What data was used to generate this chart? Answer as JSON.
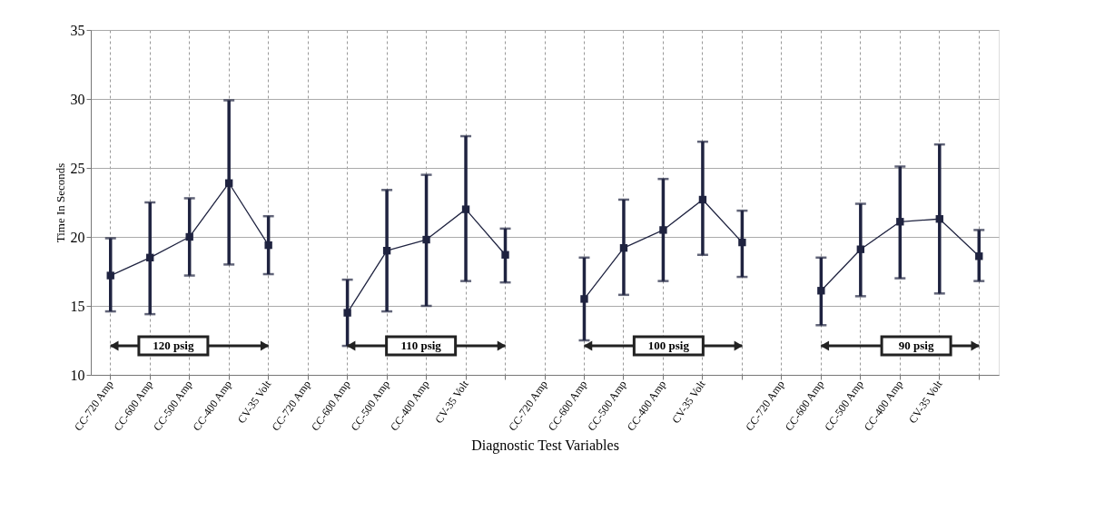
{
  "chart_data": {
    "type": "line",
    "xlabel": "Diagnostic Test Variables",
    "ylabel": "Time In Seconds",
    "categories": [
      "CC-720 Amp",
      "CC-600 Amp",
      "CC-500 Amp",
      "CC-400 Amp",
      "CV-35 Volt",
      "CC-720 Amp",
      "CC-600 Amp",
      "CC-500 Amp",
      "CC-400 Amp",
      "CV-35 Volt",
      null,
      "CC-720 Amp",
      "CC-600 Amp",
      "CC-500 Amp",
      "CC-400 Amp",
      "CV-35 Volt",
      null,
      "CC-720 Amp",
      "CC-600 Amp",
      "CC-500 Amp",
      "CC-400 Amp",
      "CV-35 Volt",
      null
    ],
    "series": [
      {
        "color": "#1f2340",
        "values": [
          17.2,
          18.5,
          20.0,
          23.9,
          19.4,
          null,
          14.5,
          19.0,
          19.8,
          22.0,
          18.7,
          null,
          15.5,
          19.2,
          20.5,
          22.7,
          19.6,
          null,
          16.1,
          19.1,
          21.1,
          21.3,
          18.6
        ],
        "errors": [
          [
            14.6,
            19.9
          ],
          [
            14.4,
            22.5
          ],
          [
            17.2,
            22.8
          ],
          [
            18.0,
            29.9
          ],
          [
            17.3,
            21.5
          ],
          null,
          [
            12.1,
            16.9
          ],
          [
            14.6,
            23.4
          ],
          [
            15.0,
            24.5
          ],
          [
            16.8,
            27.3
          ],
          [
            16.7,
            20.6
          ],
          null,
          [
            12.5,
            18.5
          ],
          [
            15.8,
            22.7
          ],
          [
            16.8,
            24.2
          ],
          [
            18.7,
            26.9
          ],
          [
            17.1,
            21.9
          ],
          null,
          [
            13.6,
            18.5
          ],
          [
            15.7,
            22.4
          ],
          [
            17.0,
            25.1
          ],
          [
            15.9,
            26.7
          ],
          [
            16.8,
            20.5
          ]
        ]
      }
    ],
    "ylim": [
      10,
      35
    ],
    "yticks": [
      10,
      15,
      20,
      25,
      30,
      35
    ],
    "grid": true,
    "marker": "square",
    "line_style": "solid",
    "annotations": [
      "120 psig",
      "110 psig",
      "100 psig",
      "90 psig"
    ]
  }
}
